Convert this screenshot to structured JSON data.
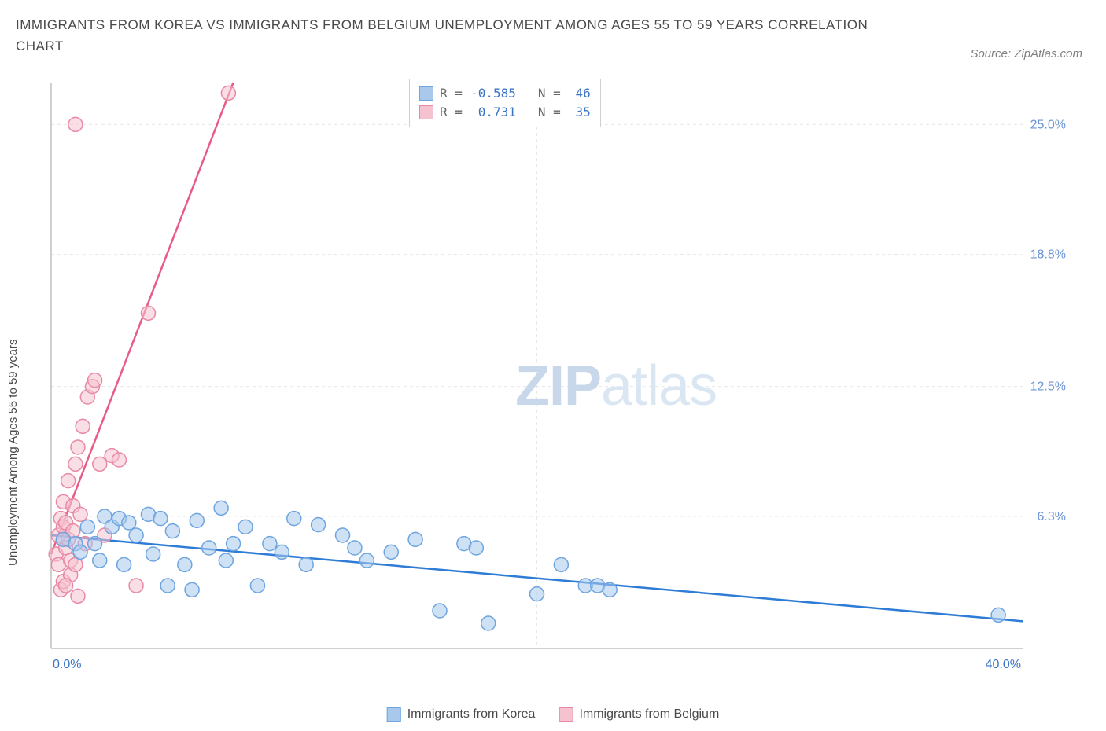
{
  "title": "IMMIGRANTS FROM KOREA VS IMMIGRANTS FROM BELGIUM UNEMPLOYMENT AMONG AGES 55 TO 59 YEARS CORRELATION CHART",
  "source": "Source: ZipAtlas.com",
  "ylabel": "Unemployment Among Ages 55 to 59 years",
  "watermark": {
    "bold": "ZIP",
    "light": "atlas"
  },
  "stats_legend": {
    "series1": {
      "r_label": "R =",
      "r_value": "-0.585",
      "n_label": "N =",
      "n_value": "46"
    },
    "series2": {
      "r_label": "R =",
      "r_value": "0.731",
      "n_label": "N =",
      "n_value": "35"
    }
  },
  "bottom_legend": {
    "series1": "Immigrants from Korea",
    "series2": "Immigrants from Belgium"
  },
  "colors": {
    "korea_fill": "#a8c8ec",
    "korea_stroke": "#6ea5e0",
    "korea_line": "#2e7cd6",
    "belgium_fill": "#f5c2cf",
    "belgium_stroke": "#e989a5",
    "belgium_line": "#e95b87",
    "grid": "#e8e8e8",
    "axis": "#c0c0c0",
    "text_blue": "#3a74c4",
    "text_grey": "#666666",
    "ytick_color": "#6a94d4",
    "xtick_left": "#3a74c4",
    "xtick_right": "#3a74c4"
  },
  "plot": {
    "xlim": [
      0,
      40
    ],
    "ylim": [
      0,
      27
    ],
    "yticks": [
      {
        "v": 6.3,
        "label": "6.3%"
      },
      {
        "v": 12.5,
        "label": "12.5%"
      },
      {
        "v": 18.8,
        "label": "18.8%"
      },
      {
        "v": 25.0,
        "label": "25.0%"
      }
    ],
    "xticks": [
      {
        "v": 0,
        "label": "0.0%",
        "align": "left"
      },
      {
        "v": 40,
        "label": "40.0%",
        "align": "right"
      }
    ],
    "korea_line": {
      "x1": 0,
      "y1": 5.4,
      "x2": 40,
      "y2": 1.3
    },
    "belgium_line": {
      "x1": 0,
      "y1": 4.5,
      "x2": 7.5,
      "y2": 27
    },
    "korea_points": [
      [
        0.5,
        5.2
      ],
      [
        1.0,
        5.0
      ],
      [
        1.2,
        4.6
      ],
      [
        1.5,
        5.8
      ],
      [
        1.8,
        5.0
      ],
      [
        2.0,
        4.2
      ],
      [
        2.2,
        6.3
      ],
      [
        2.5,
        5.8
      ],
      [
        2.8,
        6.2
      ],
      [
        3.0,
        4.0
      ],
      [
        3.2,
        6.0
      ],
      [
        3.5,
        5.4
      ],
      [
        4.0,
        6.4
      ],
      [
        4.2,
        4.5
      ],
      [
        4.5,
        6.2
      ],
      [
        4.8,
        3.0
      ],
      [
        5.0,
        5.6
      ],
      [
        5.5,
        4.0
      ],
      [
        5.8,
        2.8
      ],
      [
        6.0,
        6.1
      ],
      [
        6.5,
        4.8
      ],
      [
        7.0,
        6.7
      ],
      [
        7.2,
        4.2
      ],
      [
        7.5,
        5.0
      ],
      [
        8.0,
        5.8
      ],
      [
        8.5,
        3.0
      ],
      [
        9.0,
        5.0
      ],
      [
        9.5,
        4.6
      ],
      [
        10.0,
        6.2
      ],
      [
        10.5,
        4.0
      ],
      [
        11.0,
        5.9
      ],
      [
        12.0,
        5.4
      ],
      [
        12.5,
        4.8
      ],
      [
        13.0,
        4.2
      ],
      [
        14.0,
        4.6
      ],
      [
        15.0,
        5.2
      ],
      [
        16.0,
        1.8
      ],
      [
        17.0,
        5.0
      ],
      [
        17.5,
        4.8
      ],
      [
        18.0,
        1.2
      ],
      [
        20.0,
        2.6
      ],
      [
        21.0,
        4.0
      ],
      [
        22.0,
        3.0
      ],
      [
        22.5,
        3.0
      ],
      [
        23.0,
        2.8
      ],
      [
        39.0,
        1.6
      ]
    ],
    "belgium_points": [
      [
        0.2,
        4.5
      ],
      [
        0.3,
        5.4
      ],
      [
        0.3,
        4.0
      ],
      [
        0.4,
        6.2
      ],
      [
        0.4,
        2.8
      ],
      [
        0.5,
        5.8
      ],
      [
        0.5,
        7.0
      ],
      [
        0.5,
        3.2
      ],
      [
        0.6,
        4.8
      ],
      [
        0.6,
        6.0
      ],
      [
        0.7,
        5.2
      ],
      [
        0.7,
        8.0
      ],
      [
        0.8,
        4.2
      ],
      [
        0.8,
        3.5
      ],
      [
        0.9,
        5.6
      ],
      [
        0.9,
        6.8
      ],
      [
        1.0,
        8.8
      ],
      [
        1.0,
        4.0
      ],
      [
        1.1,
        9.6
      ],
      [
        1.1,
        2.5
      ],
      [
        1.2,
        6.4
      ],
      [
        1.3,
        10.6
      ],
      [
        1.4,
        5.0
      ],
      [
        1.5,
        12.0
      ],
      [
        1.7,
        12.5
      ],
      [
        1.8,
        12.8
      ],
      [
        2.0,
        8.8
      ],
      [
        2.2,
        5.4
      ],
      [
        2.5,
        9.2
      ],
      [
        2.8,
        9.0
      ],
      [
        3.5,
        3.0
      ],
      [
        4.0,
        16.0
      ],
      [
        1.0,
        25.0
      ],
      [
        7.3,
        26.5
      ],
      [
        0.6,
        3.0
      ]
    ]
  }
}
